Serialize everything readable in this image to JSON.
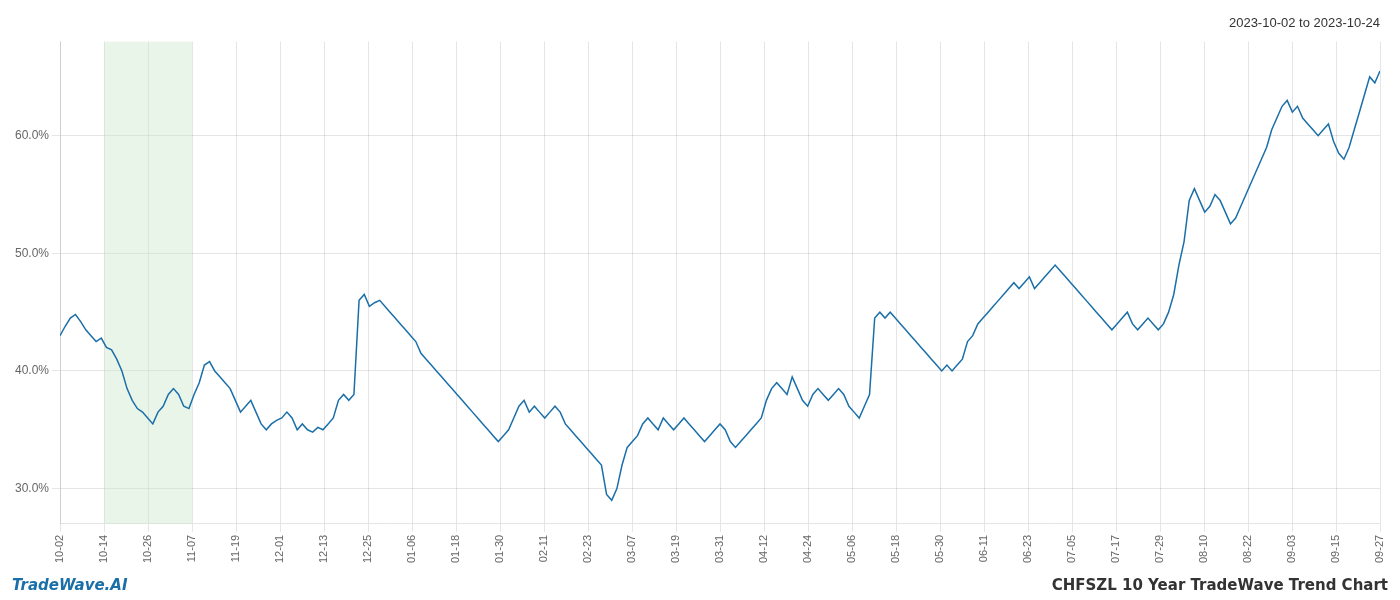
{
  "chart_data": {
    "type": "line",
    "title": "2023-10-02 to 2023-10-24",
    "annotations": [
      {
        "text": "TradeWave.AI",
        "color": "#1a6fa8"
      },
      {
        "text": "CHFSZL 10 Year TradeWave Trend Chart",
        "color": "#333333"
      }
    ],
    "color": "#1a6fa8",
    "grid": true,
    "xlim": [
      0,
      30
    ],
    "xticks": [
      {
        "value": 0,
        "label": "10-02"
      },
      {
        "value": 1,
        "label": "10-14"
      },
      {
        "value": 2,
        "label": "10-26"
      },
      {
        "value": 3,
        "label": "11-07"
      },
      {
        "value": 4,
        "label": "11-19"
      },
      {
        "value": 5,
        "label": "12-01"
      },
      {
        "value": 6,
        "label": "12-13"
      },
      {
        "value": 7,
        "label": "12-25"
      },
      {
        "value": 8,
        "label": "01-06"
      },
      {
        "value": 9,
        "label": "01-18"
      },
      {
        "value": 10,
        "label": "01-30"
      },
      {
        "value": 11,
        "label": "02-11"
      },
      {
        "value": 12,
        "label": "02-23"
      },
      {
        "value": 13,
        "label": "03-07"
      },
      {
        "value": 14,
        "label": "03-19"
      },
      {
        "value": 15,
        "label": "03-31"
      },
      {
        "value": 16,
        "label": "04-12"
      },
      {
        "value": 17,
        "label": "04-24"
      },
      {
        "value": 18,
        "label": "05-06"
      },
      {
        "value": 19,
        "label": "05-18"
      },
      {
        "value": 20,
        "label": "05-30"
      },
      {
        "value": 21,
        "label": "06-11"
      },
      {
        "value": 22,
        "label": "06-23"
      },
      {
        "value": 23,
        "label": "07-05"
      },
      {
        "value": 24,
        "label": "07-17"
      },
      {
        "value": 25,
        "label": "07-29"
      },
      {
        "value": 26,
        "label": "08-10"
      },
      {
        "value": 27,
        "label": "08-22"
      },
      {
        "value": 28,
        "label": "09-03"
      },
      {
        "value": 29,
        "label": "09-15"
      },
      {
        "value": 30,
        "label": "09-27"
      }
    ],
    "ylim": [
      27,
      68
    ],
    "yticks": [
      {
        "value": 30.0,
        "label": "30.0%"
      },
      {
        "value": 40.0,
        "label": "40.0%"
      },
      {
        "value": 50.0,
        "label": "50.0%"
      },
      {
        "value": 60.0,
        "label": "60.0%"
      }
    ],
    "highlight": {
      "from": 1,
      "to": 3,
      "color": "#c8e6c9"
    },
    "values": [
      43.0,
      43.8,
      44.5,
      44.8,
      44.2,
      43.5,
      43.0,
      42.5,
      42.8,
      42.0,
      41.8,
      41.0,
      40.0,
      38.5,
      37.5,
      36.8,
      36.5,
      36.0,
      35.5,
      36.5,
      37.0,
      38.0,
      38.5,
      38.0,
      37.0,
      36.8,
      38.0,
      39.0,
      40.5,
      40.8,
      40.0,
      39.5,
      39.0,
      38.5,
      37.5,
      36.5,
      37.0,
      37.5,
      36.5,
      35.5,
      35.0,
      35.5,
      35.8,
      36.0,
      36.5,
      36.0,
      35.0,
      35.5,
      35.0,
      34.8,
      35.2,
      35.0,
      35.5,
      36.0,
      37.5,
      38.0,
      37.5,
      38.0,
      46.0,
      46.5,
      45.5,
      45.8,
      46.0,
      45.5,
      45.0,
      44.5,
      44.0,
      43.5,
      43.0,
      42.5,
      41.5,
      41.0,
      40.5,
      40.0,
      39.5,
      39.0,
      38.5,
      38.0,
      37.5,
      37.0,
      36.5,
      36.0,
      35.5,
      35.0,
      34.5,
      34.0,
      34.5,
      35.0,
      36.0,
      37.0,
      37.5,
      36.5,
      37.0,
      36.5,
      36.0,
      36.5,
      37.0,
      36.5,
      35.5,
      35.0,
      34.5,
      34.0,
      33.5,
      33.0,
      32.5,
      32.0,
      29.5,
      29.0,
      30.0,
      32.0,
      33.5,
      34.0,
      34.5,
      35.5,
      36.0,
      35.5,
      35.0,
      36.0,
      35.5,
      35.0,
      35.5,
      36.0,
      35.5,
      35.0,
      34.5,
      34.0,
      34.5,
      35.0,
      35.5,
      35.0,
      34.0,
      33.5,
      34.0,
      34.5,
      35.0,
      35.5,
      36.0,
      37.5,
      38.5,
      39.0,
      38.5,
      38.0,
      39.5,
      38.5,
      37.5,
      37.0,
      38.0,
      38.5,
      38.0,
      37.5,
      38.0,
      38.5,
      38.0,
      37.0,
      36.5,
      36.0,
      37.0,
      38.0,
      44.5,
      45.0,
      44.5,
      45.0,
      44.5,
      44.0,
      43.5,
      43.0,
      42.5,
      42.0,
      41.5,
      41.0,
      40.5,
      40.0,
      40.5,
      40.0,
      40.5,
      41.0,
      42.5,
      43.0,
      44.0,
      44.5,
      45.0,
      45.5,
      46.0,
      46.5,
      47.0,
      47.5,
      47.0,
      47.5,
      48.0,
      47.0,
      47.5,
      48.0,
      48.5,
      49.0,
      48.5,
      48.0,
      47.5,
      47.0,
      46.5,
      46.0,
      45.5,
      45.0,
      44.5,
      44.0,
      43.5,
      44.0,
      44.5,
      45.0,
      44.0,
      43.5,
      44.0,
      44.5,
      44.0,
      43.5,
      44.0,
      45.0,
      46.5,
      49.0,
      51.0,
      54.5,
      55.5,
      54.5,
      53.5,
      54.0,
      55.0,
      54.5,
      53.5,
      52.5,
      53.0,
      54.0,
      55.0,
      56.0,
      57.0,
      58.0,
      59.0,
      60.5,
      61.5,
      62.5,
      63.0,
      62.0,
      62.5,
      61.5,
      61.0,
      60.5,
      60.0,
      60.5,
      61.0,
      59.5,
      58.5,
      58.0,
      59.0,
      60.5,
      62.0,
      63.5,
      65.0,
      64.5,
      65.5
    ]
  }
}
